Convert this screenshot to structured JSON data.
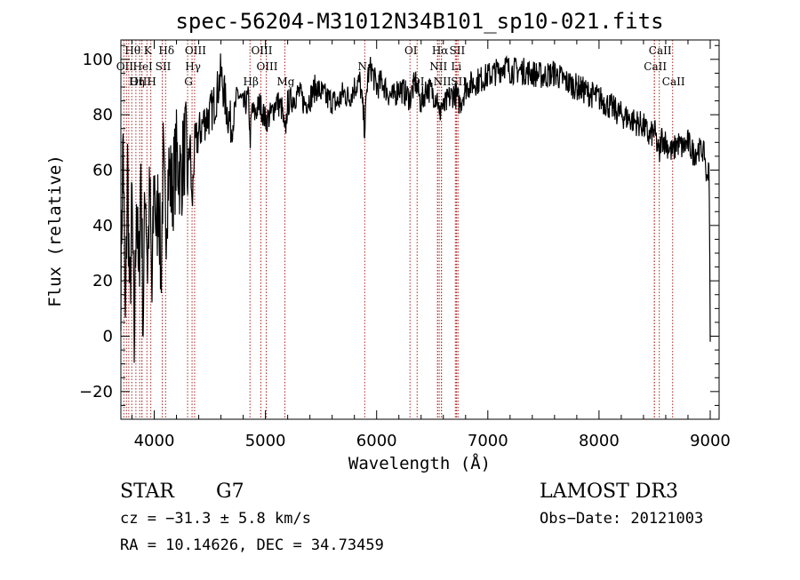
{
  "chart_data": {
    "type": "line",
    "title": "spec-56204-M31012N34B101_sp10-021.fits",
    "xlabel": "Wavelength (Å)",
    "ylabel": "Flux (relative)",
    "xlim": [
      3700,
      9080
    ],
    "ylim": [
      -30,
      107
    ],
    "xticks": [
      4000,
      5000,
      6000,
      7000,
      8000,
      9000
    ],
    "yticks": [
      -20,
      0,
      20,
      40,
      60,
      80,
      100
    ],
    "line_color": "#000000",
    "marker_color": "#b22222",
    "spectrum": {
      "x": [
        3700,
        3720,
        3740,
        3760,
        3780,
        3800,
        3820,
        3840,
        3860,
        3880,
        3900,
        3920,
        3940,
        3960,
        3980,
        4000,
        4020,
        4040,
        4060,
        4080,
        4100,
        4130,
        4160,
        4200,
        4240,
        4280,
        4300,
        4320,
        4340,
        4360,
        4400,
        4450,
        4500,
        4550,
        4600,
        4650,
        4700,
        4750,
        4800,
        4850,
        4861,
        4880,
        4900,
        4950,
        5000,
        5050,
        5100,
        5150,
        5175,
        5200,
        5250,
        5300,
        5350,
        5400,
        5450,
        5500,
        5550,
        5600,
        5650,
        5700,
        5750,
        5800,
        5850,
        5893,
        5920,
        5950,
        6000,
        6050,
        6100,
        6150,
        6200,
        6250,
        6300,
        6350,
        6400,
        6450,
        6500,
        6550,
        6563,
        6580,
        6600,
        6650,
        6700,
        6750,
        6800,
        6900,
        7000,
        7100,
        7150,
        7200,
        7300,
        7400,
        7500,
        7600,
        7700,
        7800,
        7900,
        8000,
        8100,
        8200,
        8300,
        8400,
        8450,
        8500,
        8542,
        8560,
        8600,
        8662,
        8700,
        8750,
        8800,
        8850,
        8900,
        8950,
        8970,
        8990,
        9000
      ],
      "y": [
        20,
        72,
        0,
        62,
        10,
        48,
        -5,
        55,
        15,
        62,
        5,
        58,
        25,
        52,
        12,
        60,
        35,
        55,
        20,
        62,
        40,
        60,
        52,
        65,
        58,
        70,
        55,
        72,
        45,
        68,
        73,
        78,
        80,
        85,
        95,
        82,
        75,
        88,
        83,
        86,
        70,
        82,
        80,
        84,
        78,
        80,
        85,
        82,
        72,
        84,
        86,
        88,
        84,
        86,
        90,
        88,
        86,
        85,
        84,
        88,
        86,
        90,
        92,
        75,
        94,
        97,
        90,
        92,
        88,
        86,
        90,
        88,
        86,
        92,
        84,
        90,
        88,
        86,
        78,
        84,
        82,
        86,
        88,
        84,
        90,
        92,
        94,
        96,
        98,
        96,
        96,
        95,
        94,
        95,
        92,
        90,
        88,
        86,
        83,
        80,
        78,
        76,
        72,
        74,
        65,
        72,
        70,
        66,
        70,
        68,
        70,
        66,
        68,
        66,
        55,
        65,
        -2
      ]
    },
    "spectral_lines": [
      {
        "name": "Hθ",
        "wave": 3798,
        "row": 0
      },
      {
        "name": "K",
        "wave": 3934,
        "row": 0
      },
      {
        "name": "Hδ",
        "wave": 4102,
        "row": 0
      },
      {
        "name": "OIII",
        "wave": 4363,
        "row": 0
      },
      {
        "name": "OIII",
        "wave": 4959,
        "row": 0
      },
      {
        "name": "Na",
        "wave": 5893,
        "row": 1
      },
      {
        "name": "OI",
        "wave": 6300,
        "row": 0
      },
      {
        "name": "Hα",
        "wave": 6563,
        "row": 0
      },
      {
        "name": "SII",
        "wave": 6717,
        "row": 0
      },
      {
        "name": "CaII",
        "wave": 8542,
        "row": 0
      },
      {
        "name": "OII",
        "wave": 3727,
        "row": 1
      },
      {
        "name": "HeI",
        "wave": 3889,
        "row": 1
      },
      {
        "name": "SII",
        "wave": 4072,
        "row": 1
      },
      {
        "name": "Hγ",
        "wave": 4340,
        "row": 1
      },
      {
        "name": "OIII",
        "wave": 5007,
        "row": 1
      },
      {
        "name": "NII",
        "wave": 6548,
        "row": 1
      },
      {
        "name": "Li",
        "wave": 6708,
        "row": 1
      },
      {
        "name": "CaII",
        "wave": 8498,
        "row": 1
      },
      {
        "name": "OIII",
        "wave": 3869,
        "row": 2
      },
      {
        "name": "Hη",
        "wave": 3835,
        "row": 2
      },
      {
        "name": "H",
        "wave": 3969,
        "row": 2
      },
      {
        "name": "G",
        "wave": 4300,
        "row": 2
      },
      {
        "name": "Hβ",
        "wave": 4861,
        "row": 2
      },
      {
        "name": "Mg",
        "wave": 5175,
        "row": 2
      },
      {
        "name": "OI",
        "wave": 6364,
        "row": 2
      },
      {
        "name": "NII",
        "wave": 6583,
        "row": 2
      },
      {
        "name": "SII",
        "wave": 6731,
        "row": 2
      },
      {
        "name": "CaII",
        "wave": 8662,
        "row": 2
      }
    ],
    "extra_marker_waves": [
      3750,
      3771,
      3889,
      6548,
      6583,
      6717,
      6731,
      8498
    ]
  },
  "info": {
    "object_class": "STAR",
    "subclass": "G7",
    "survey": "LAMOST DR3",
    "redshift": "cz = −31.3 ± 5.8 km/s",
    "obs_date": "Obs−Date: 20121003",
    "coords": "RA =  10.14626, DEC =  34.73459"
  }
}
